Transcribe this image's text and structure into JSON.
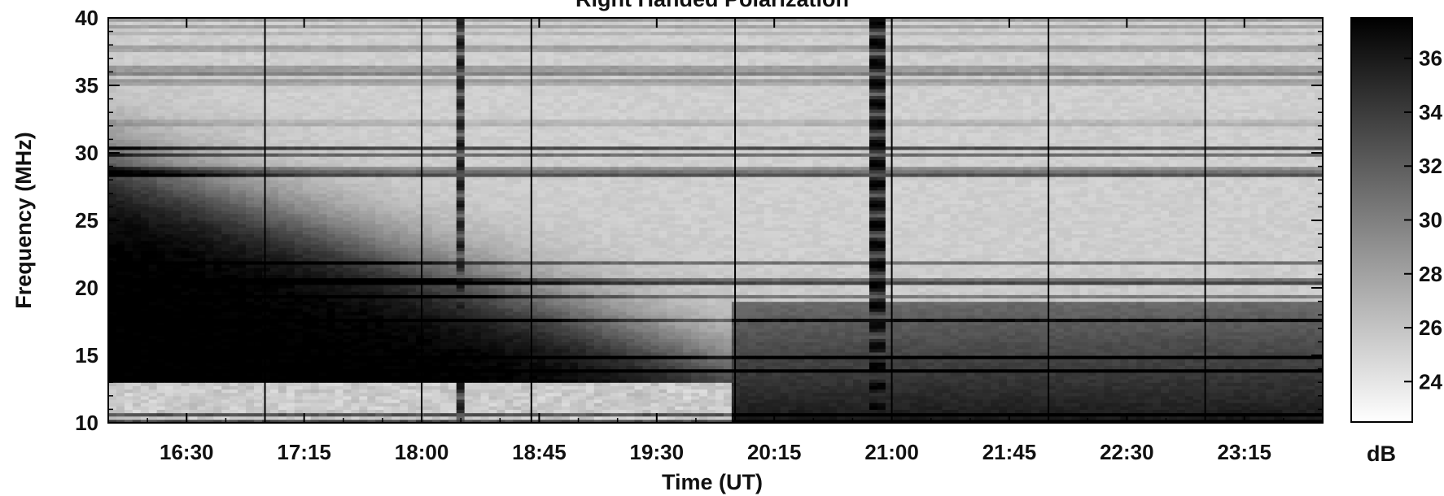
{
  "chart_data": {
    "type": "heatmap",
    "title": "Right Handed Polarization",
    "xlabel": "Time (UT)",
    "ylabel": "Frequency (MHz)",
    "x_ticks": [
      "16:30",
      "17:15",
      "18:00",
      "18:45",
      "19:30",
      "20:15",
      "21:00",
      "21:45",
      "22:30",
      "23:15"
    ],
    "x_tick_minutes": [
      990,
      1035,
      1080,
      1125,
      1170,
      1215,
      1260,
      1305,
      1350,
      1395
    ],
    "xlim_minutes": [
      960,
      1425
    ],
    "y_ticks": [
      "10",
      "15",
      "20",
      "25",
      "30",
      "35",
      "40"
    ],
    "y_tick_values": [
      10,
      15,
      20,
      25,
      30,
      35,
      40
    ],
    "ylim": [
      10,
      40
    ],
    "vertical_marker_minutes": [
      1020,
      1080,
      1122,
      1200,
      1260,
      1320,
      1380
    ],
    "colorbar": {
      "label": "dB",
      "ticks": [
        "24",
        "26",
        "28",
        "30",
        "32",
        "34",
        "36"
      ],
      "tick_values": [
        24,
        26,
        28,
        30,
        32,
        34,
        36
      ],
      "range": [
        22.5,
        37.5
      ],
      "colors": [
        "#ffffff",
        "#000000"
      ]
    },
    "features": {
      "rfi_line_mhz": 36,
      "bursts": [
        {
          "start_minute": 1093,
          "end_minute": 1097,
          "intensity": 0.9
        },
        {
          "start_minute": 1250,
          "end_minute": 1258,
          "intensity": 1.0
        }
      ]
    }
  }
}
